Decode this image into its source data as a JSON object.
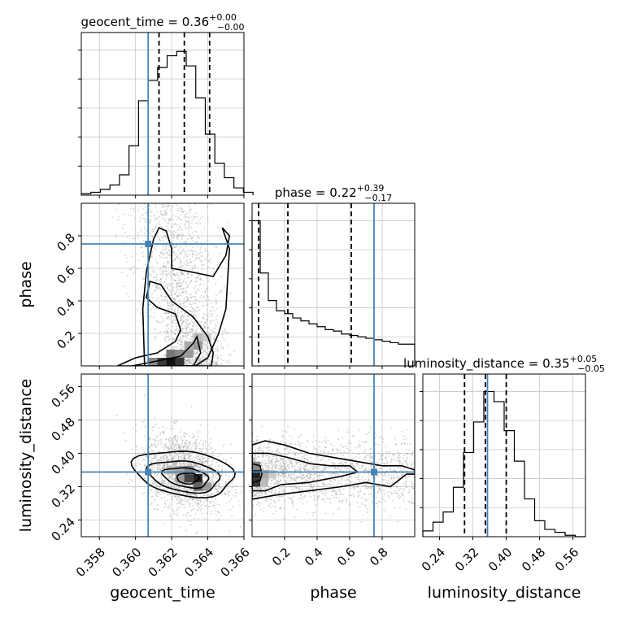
{
  "chart_data": {
    "type": "corner",
    "params": [
      "geocent_time",
      "phase",
      "luminosity_distance"
    ],
    "axis_labels": [
      "geocent_time",
      "phase",
      "luminosity_distance"
    ],
    "ranges": {
      "geocent_time": [
        0.357,
        0.366
      ],
      "phase": [
        0.0,
        1.0
      ],
      "luminosity_distance": [
        0.2,
        0.59
      ]
    },
    "ticks": {
      "geocent_time": [
        "0.358",
        "0.360",
        "0.362",
        "0.364",
        "0.366"
      ],
      "phase": [
        "0.2",
        "0.4",
        "0.6",
        "0.8"
      ],
      "luminosity_distance": [
        "0.24",
        "0.32",
        "0.40",
        "0.48",
        "0.56"
      ]
    },
    "tick_values": {
      "geocent_time": [
        0.358,
        0.36,
        0.362,
        0.364,
        0.366
      ],
      "phase": [
        0.2,
        0.4,
        0.6,
        0.8
      ],
      "luminosity_distance": [
        0.24,
        0.32,
        0.4,
        0.48,
        0.56
      ]
    },
    "truths": {
      "geocent_time": 0.3607,
      "phase": 0.75,
      "luminosity_distance": 0.355
    },
    "quantiles": {
      "geocent_time": [
        0.3613,
        0.3627,
        0.3641
      ],
      "phase": [
        0.04,
        0.22,
        0.61
      ],
      "luminosity_distance": [
        0.3,
        0.35,
        0.4
      ]
    },
    "titles": {
      "geocent_time": {
        "main": "geocent_time = 0.36",
        "sup": "+0.00",
        "sub": "−0.00"
      },
      "phase": {
        "main": "phase = 0.22",
        "sup": "+0.39",
        "sub": "−0.17"
      },
      "luminosity_distance": {
        "main": "luminosity_distance = 0.35",
        "sup": "+0.05",
        "sub": "−0.05"
      }
    },
    "histograms": {
      "geocent_time": [
        0.01,
        0.02,
        0.04,
        0.07,
        0.14,
        0.34,
        0.65,
        0.79,
        0.88,
        0.96,
        0.99,
        0.89,
        0.67,
        0.42,
        0.22,
        0.12,
        0.05,
        0.02
      ],
      "phase": [
        1.0,
        0.64,
        0.45,
        0.38,
        0.36,
        0.33,
        0.31,
        0.29,
        0.27,
        0.25,
        0.24,
        0.22,
        0.21,
        0.2,
        0.19,
        0.18,
        0.17,
        0.16,
        0.15,
        0.15
      ],
      "luminosity_distance": [
        0.04,
        0.1,
        0.17,
        0.34,
        0.58,
        0.79,
        1.0,
        0.93,
        0.73,
        0.52,
        0.26,
        0.11,
        0.05,
        0.03,
        0.01,
        0.0
      ]
    },
    "hist_edges": {
      "geocent_time": [
        0.357,
        0.3665
      ],
      "phase": [
        0.0,
        1.0
      ],
      "luminosity_distance": [
        0.2,
        0.59
      ]
    },
    "grid": true,
    "colors": {
      "truth": "#4682b4",
      "contour": "#000000",
      "scatter": "#9a9a9a",
      "grid": "#c8c8c8"
    }
  }
}
